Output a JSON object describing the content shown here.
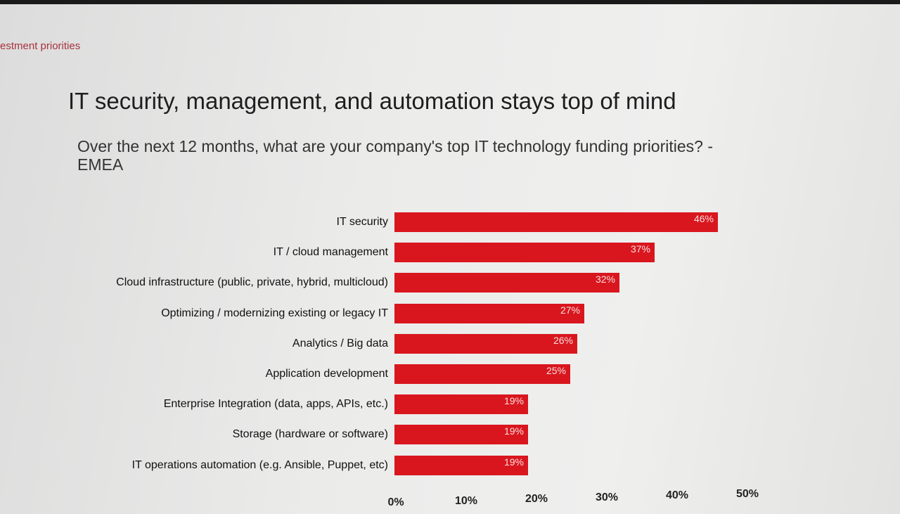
{
  "header": {
    "section": "estment priorities",
    "title": "IT security, management, and automation stays top of mind",
    "subtitle": "Over the next 12 months, what are your company's top IT technology funding priorities? - EMEA"
  },
  "colors": {
    "bar": "#d9161e",
    "section": "#a8323c"
  },
  "chart_data": {
    "type": "bar",
    "orientation": "horizontal",
    "title": "Over the next 12 months, what are your company's top IT technology funding priorities? - EMEA",
    "categories": [
      "IT security",
      "IT / cloud management",
      "Cloud infrastructure (public, private, hybrid, multicloud)",
      "Optimizing / modernizing existing or legacy IT",
      "Analytics / Big data",
      "Application development",
      "Enterprise Integration (data, apps, APIs, etc.)",
      "Storage (hardware or software)",
      "IT operations automation (e.g. Ansible, Puppet, etc)"
    ],
    "values": [
      46,
      37,
      32,
      27,
      26,
      25,
      19,
      19,
      19
    ],
    "data_labels": [
      "46%",
      "37%",
      "32%",
      "27%",
      "26%",
      "25%",
      "19%",
      "19%",
      "19%"
    ],
    "xlim": [
      0,
      50
    ],
    "x_ticks": [
      "0%",
      "10%",
      "20%",
      "30%",
      "40%",
      "50%"
    ],
    "xlabel": "",
    "ylabel": "",
    "grid": false,
    "legend": "none"
  }
}
